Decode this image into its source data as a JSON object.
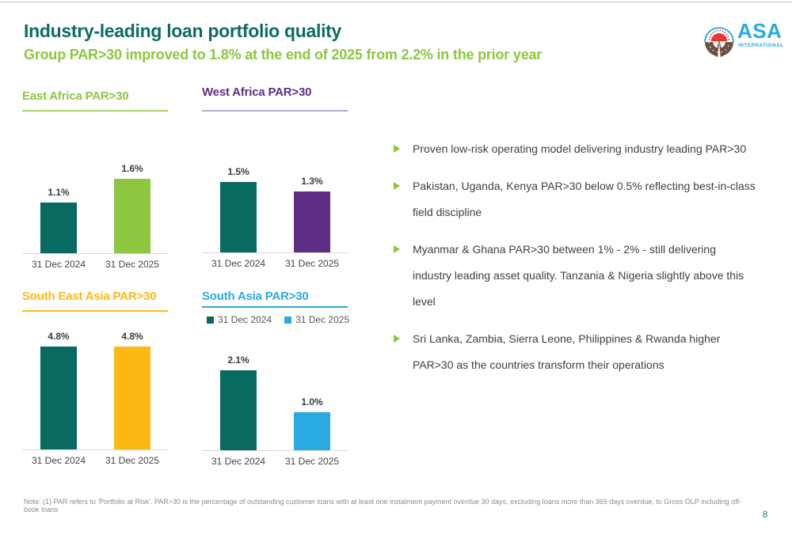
{
  "page": {
    "title": "Industry-leading loan portfolio quality",
    "subtitle": "Group PAR>30 improved to 1.8% at the end of 2025 from 2.2% in the prior year",
    "footnote": "Note: (1) PAR refers to 'Portfolio at Risk'. PAR>30 is the percentage of outstanding customer loans with at least one instalment payment overdue 30 days, excluding loans more than 365 days overdue, to Gross OLP including off-book loans",
    "page_number": "8"
  },
  "logo": {
    "name": "ASA",
    "subname": "INTERNATIONAL"
  },
  "colors": {
    "teal": "#086A61",
    "green": "#8DC63F",
    "purple": "#5C2D82",
    "gold": "#FDB913",
    "blue": "#29ABE2",
    "header_teal": "#0E6C62"
  },
  "bullets": [
    "Proven low-risk operating model delivering industry leading PAR>30",
    "Pakistan, Uganda, Kenya PAR>30 below 0.5% reflecting best-in-class\nfield discipline",
    "Myanmar & Ghana PAR>30 between 1% - 2% - still delivering\nindustry leading asset quality. Tanzania & Nigeria slightly above this\nlevel",
    "Sri Lanka, Zambia, Sierra Leone, Philippines & Rwanda higher\nPAR>30 as the countries transform their operations"
  ],
  "chart_data": [
    {
      "type": "bar",
      "title": "East Africa PAR>30",
      "title_color": "#8DC63F",
      "underline_color": "#ABCF66",
      "categories": [
        "31 Dec 2024",
        "31 Dec 2025"
      ],
      "values": [
        1.1,
        1.6
      ],
      "labels": [
        "1.1%",
        "1.6%"
      ],
      "bar_colors": [
        "#086A61",
        "#8DC63F"
      ],
      "unit": "%",
      "grid": false
    },
    {
      "type": "bar",
      "title": "West Africa PAR>30",
      "title_color": "#5C2D82",
      "underline_color": "#B9A8CC",
      "categories": [
        "31 Dec 2024",
        "31 Dec 2025"
      ],
      "values": [
        1.5,
        1.3
      ],
      "labels": [
        "1.5%",
        "1.3%"
      ],
      "bar_colors": [
        "#086A61",
        "#5C2D82"
      ],
      "unit": "%",
      "grid": false
    },
    {
      "type": "bar",
      "title": "South East Asia PAR>30",
      "title_color": "#FDB913",
      "underline_color": "#FDB913",
      "categories": [
        "31 Dec 2024",
        "31 Dec 2025"
      ],
      "values": [
        4.8,
        4.8
      ],
      "labels": [
        "4.8%",
        "4.8%"
      ],
      "bar_colors": [
        "#086A61",
        "#FDB913"
      ],
      "unit": "%",
      "grid": false
    },
    {
      "type": "bar",
      "title": "South Asia PAR>30",
      "title_color": "#29ABE2",
      "underline_color": "#29ABE2",
      "categories": [
        "31 Dec 2024",
        "31 Dec 2025"
      ],
      "values": [
        2.1,
        1.0
      ],
      "labels": [
        "2.1%",
        "1.0%"
      ],
      "bar_colors": [
        "#086A61",
        "#29ABE2"
      ],
      "legend": {
        "position": "top",
        "items": [
          {
            "label": "31 Dec 2024",
            "color": "#086A61"
          },
          {
            "label": "31 Dec 2025",
            "color": "#29ABE2"
          }
        ]
      },
      "unit": "%",
      "grid": false
    }
  ]
}
